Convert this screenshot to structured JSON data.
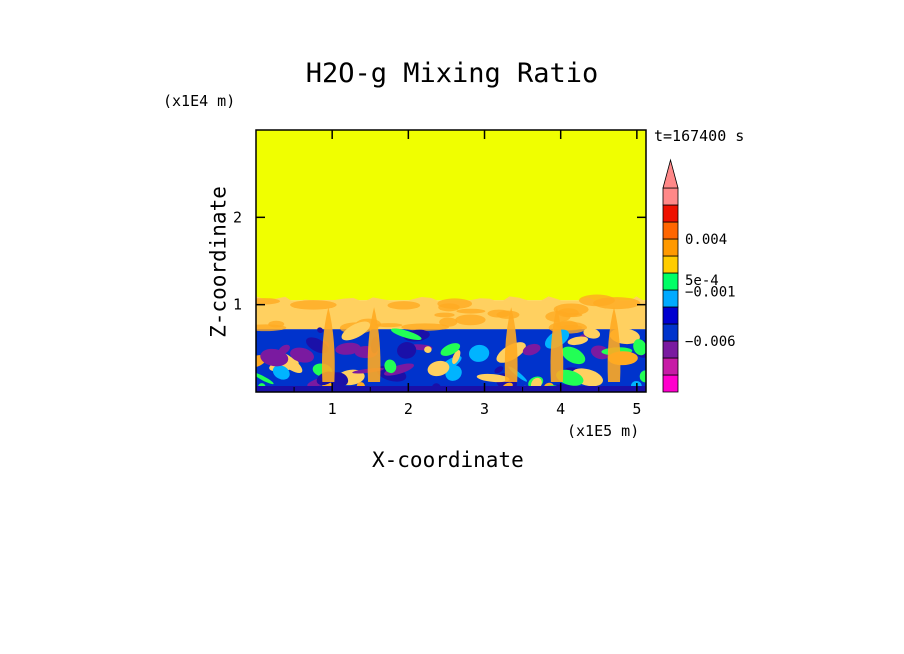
{
  "chart_data": {
    "type": "heatmap",
    "title": "H2O-g Mixing Ratio",
    "xlabel": "X-coordinate",
    "ylabel": "Z-coordinate",
    "x_scale_label": "(x1E5 m)",
    "z_scale_label": "(x1E4 m)",
    "time_label": "t=167400 s",
    "xlim": [
      0,
      5.12
    ],
    "ylim": [
      0,
      3.0
    ],
    "x_ticks": [
      "1",
      "2",
      "3",
      "4",
      "5"
    ],
    "x_tick_values": [
      1,
      2,
      3,
      4,
      5
    ],
    "y_ticks": [
      "1",
      "2"
    ],
    "y_tick_values": [
      1,
      2
    ],
    "regions": [
      {
        "name": "upper",
        "z_range": [
          1.05,
          3.0
        ],
        "level": "yellow"
      },
      {
        "name": "transition",
        "z_range": [
          0.72,
          1.05
        ],
        "level": "orange-yellow"
      },
      {
        "name": "lower",
        "z_range": [
          0.0,
          0.72
        ],
        "level": "blue-mixed"
      }
    ],
    "colorbar": {
      "colors": [
        "#ff00cc",
        "#c71ba6",
        "#7a1aa0",
        "#0033cc",
        "#0000d0",
        "#00aaff",
        "#00ff66",
        "#ffcc00",
        "#ff9900",
        "#ff6600",
        "#ee1100",
        "#ff8888"
      ],
      "arrow_color": "#ff8888",
      "labels": [
        "0.004",
        "5e-4",
        "−0.001",
        "−0.006"
      ],
      "label_levels": [
        0.004,
        0.0005,
        -0.001,
        -0.006
      ]
    },
    "palette": {
      "yellow": "#f0ff00",
      "light_orange": "#ffd060",
      "orange": "#ffaa22",
      "blue": "#0033cc",
      "dark_blue": "#1a10a8",
      "cyan": "#00b4ff",
      "green": "#22ff55",
      "purple": "#7a1aa0"
    }
  }
}
